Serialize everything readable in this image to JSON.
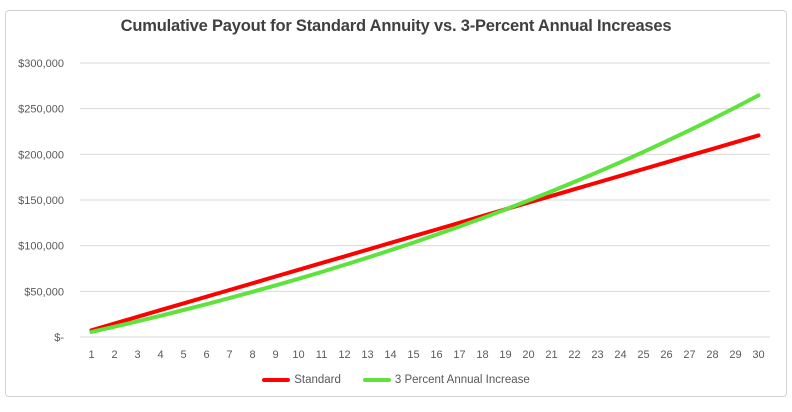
{
  "chart_data": {
    "type": "line",
    "title": "Cumulative Payout for Standard Annuity vs. 3-Percent Annual Increases",
    "xlabel": "",
    "ylabel": "",
    "categories": [
      1,
      2,
      3,
      4,
      5,
      6,
      7,
      8,
      9,
      10,
      11,
      12,
      13,
      14,
      15,
      16,
      17,
      18,
      19,
      20,
      21,
      22,
      23,
      24,
      25,
      26,
      27,
      28,
      29,
      30
    ],
    "series": [
      {
        "name": "Standard",
        "color": "#ff0000",
        "values": [
          7356,
          14712,
          22068,
          29424,
          36780,
          44136,
          51492,
          58848,
          66204,
          73560,
          80916,
          88272,
          95628,
          102984,
          110340,
          117696,
          125052,
          132408,
          139764,
          147120,
          154476,
          161832,
          169188,
          176544,
          183900,
          191256,
          198612,
          205968,
          213324,
          220680
        ]
      },
      {
        "name": "3 Percent Annual Increase",
        "color": "#5ee23c",
        "values": [
          5560,
          11287,
          17185,
          23261,
          29519,
          35964,
          42603,
          49441,
          56485,
          63739,
          71211,
          78908,
          86835,
          95000,
          103410,
          112072,
          120994,
          130184,
          139650,
          149399,
          159441,
          169785,
          180438,
          191411,
          202714,
          214355,
          226346,
          238696,
          251417,
          264519
        ]
      }
    ],
    "ylim": [
      0,
      300000
    ],
    "yticks": [
      {
        "value": 0,
        "label": "$-"
      },
      {
        "value": 50000,
        "label": "$50,000"
      },
      {
        "value": 100000,
        "label": "$100,000"
      },
      {
        "value": 150000,
        "label": "$150,000"
      },
      {
        "value": 200000,
        "label": "$200,000"
      },
      {
        "value": 250000,
        "label": "$250,000"
      },
      {
        "value": 300000,
        "label": "$300,000"
      }
    ],
    "grid": "horizontal",
    "legend_position": "bottom"
  },
  "colors": {
    "series_standard": "#ff0000",
    "series_increase": "#5ee23c",
    "gridline": "#d9d9d9",
    "axis_text": "#595959",
    "title_text": "#404040",
    "frame_border": "#d2d2d2"
  }
}
